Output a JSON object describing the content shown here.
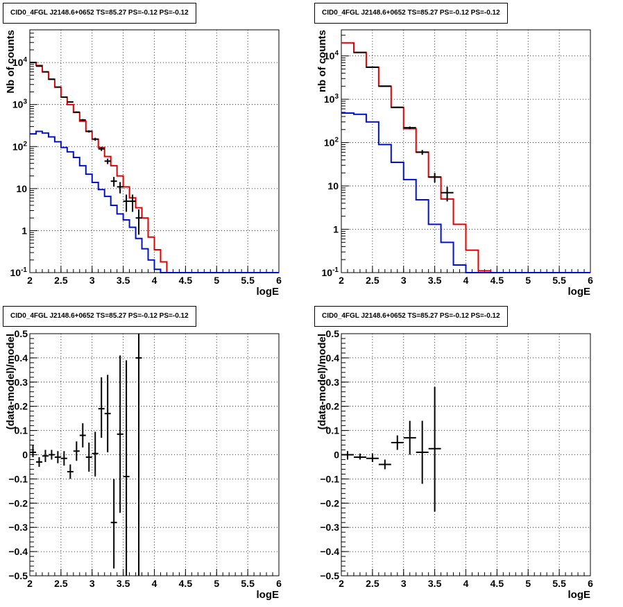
{
  "colors": {
    "data": "#000000",
    "total_model": "#e00000",
    "background_model": "#0010cc"
  },
  "chart_data": [
    {
      "type": "line",
      "title": "CID0_4FGL J2148.6+0652 TS=85.27 PS=-0.12 PS=-0.12",
      "xlabel": "logE",
      "ylabel": "Nb of counts",
      "xlim": [
        2,
        6
      ],
      "ylim": [
        0.1,
        60000
      ],
      "yscale": "log",
      "grid": true,
      "x_ticks": [
        "2",
        "2.5",
        "3",
        "3.5",
        "4",
        "4.5",
        "5",
        "5.5",
        "6"
      ],
      "y_ticks": [
        "10^{-1}",
        "1",
        "10",
        "10^{2}",
        "10^{3}",
        "10^{4}"
      ],
      "bin_edges": [
        2.0,
        2.1,
        2.2,
        2.3,
        2.4,
        2.5,
        2.6,
        2.7,
        2.8,
        2.9,
        3.0,
        3.1,
        3.2,
        3.3,
        3.4,
        3.5,
        3.6,
        3.7,
        3.8,
        3.9,
        4.0,
        4.1,
        4.2,
        4.3,
        4.4,
        4.5,
        4.6,
        4.7,
        4.8,
        4.9,
        5.0,
        5.1,
        5.2,
        5.3,
        5.4,
        5.5,
        5.6,
        5.7,
        5.8,
        5.9,
        6.0
      ],
      "series": [
        {
          "role": "total_model",
          "values": [
            10000,
            8500,
            6000,
            4000,
            2600,
            1500,
            1000,
            650,
            400,
            230,
            150,
            95,
            58,
            35,
            20,
            11,
            6,
            3.5,
            2,
            0.7,
            0.35,
            0.18,
            0.1,
            0.1,
            0.1,
            0.1,
            0.1,
            0.1,
            0.1,
            0.1,
            0.1,
            0.1,
            0.1,
            0.1,
            0.1,
            0.1,
            0.1,
            0.1,
            0.1,
            0.1
          ]
        },
        {
          "role": "background_model",
          "values": [
            200,
            230,
            210,
            170,
            130,
            95,
            75,
            55,
            35,
            22,
            14,
            9.5,
            6.5,
            4,
            2.5,
            1.8,
            1.2,
            0.65,
            0.37,
            0.2,
            0.12,
            0.1,
            0.1,
            0.1,
            0.1,
            0.1,
            0.1,
            0.1,
            0.1,
            0.1,
            0.1,
            0.1,
            0.1,
            0.1,
            0.1,
            0.1,
            0.1,
            0.1,
            0.1,
            0.1
          ]
        },
        {
          "role": "data",
          "points": [
            {
              "x": 2.05,
              "y": 10000,
              "err": 100
            },
            {
              "x": 2.15,
              "y": 8200,
              "err": 90
            },
            {
              "x": 2.25,
              "y": 6000,
              "err": 77
            },
            {
              "x": 2.35,
              "y": 4000,
              "err": 63
            },
            {
              "x": 2.45,
              "y": 2600,
              "err": 51
            },
            {
              "x": 2.55,
              "y": 1500,
              "err": 39
            },
            {
              "x": 2.65,
              "y": 1150,
              "err": 34
            },
            {
              "x": 2.75,
              "y": 660,
              "err": 26
            },
            {
              "x": 2.85,
              "y": 430,
              "err": 21
            },
            {
              "x": 2.95,
              "y": 230,
              "err": 15
            },
            {
              "x": 3.05,
              "y": 150,
              "err": 12
            },
            {
              "x": 3.15,
              "y": 88,
              "err": 9.4
            },
            {
              "x": 3.25,
              "y": 45,
              "err": 6.7
            },
            {
              "x": 3.35,
              "y": 15,
              "err": 3.9
            },
            {
              "x": 3.45,
              "y": 11,
              "err": 3.3
            },
            {
              "x": 3.55,
              "y": 5,
              "err": 2.2
            },
            {
              "x": 3.65,
              "y": 5,
              "err": 2.2
            },
            {
              "x": 3.75,
              "y": 2,
              "err": 1.2
            }
          ]
        }
      ]
    },
    {
      "type": "line",
      "title": "CID0_4FGL J2148.6+0652 TS=85.27 PS=-0.12 PS=-0.12",
      "xlabel": "logE",
      "ylabel": "nb of counts",
      "xlim": [
        2,
        6
      ],
      "ylim": [
        0.1,
        40000
      ],
      "yscale": "log",
      "grid": true,
      "x_ticks": [
        "2",
        "2.5",
        "3",
        "3.5",
        "4",
        "4.5",
        "5",
        "5.5",
        "6"
      ],
      "y_ticks": [
        "10^{-1}",
        "1",
        "10",
        "10^{2}",
        "10^{3}",
        "10^{4}"
      ],
      "bin_edges": [
        2.0,
        2.2,
        2.4,
        2.6,
        2.8,
        3.0,
        3.2,
        3.4,
        3.6,
        3.8,
        4.0,
        4.2,
        4.4,
        4.6,
        4.8,
        5.0,
        5.2,
        5.4,
        5.6,
        5.8,
        6.0
      ],
      "series": [
        {
          "role": "total_model",
          "values": [
            20000,
            12000,
            5500,
            2000,
            650,
            210,
            60,
            16,
            5,
            1.3,
            0.33,
            0.11,
            0.1,
            0.1,
            0.1,
            0.1,
            0.1,
            0.1,
            0.1,
            0.1
          ]
        },
        {
          "role": "background_model",
          "values": [
            480,
            450,
            300,
            90,
            35,
            14,
            4.8,
            1.3,
            0.5,
            0.15,
            0.1,
            0.1,
            0.1,
            0.1,
            0.1,
            0.1,
            0.1,
            0.1,
            0.1,
            0.1
          ]
        },
        {
          "role": "data",
          "points": [
            {
              "x": 2.3,
              "y": 12000,
              "err": 110
            },
            {
              "x": 2.5,
              "y": 5500,
              "err": 74
            },
            {
              "x": 2.7,
              "y": 2000,
              "err": 45
            },
            {
              "x": 2.9,
              "y": 650,
              "err": 25
            },
            {
              "x": 3.1,
              "y": 220,
              "err": 15
            },
            {
              "x": 3.3,
              "y": 60,
              "err": 7.7
            },
            {
              "x": 3.5,
              "y": 16,
              "err": 4
            },
            {
              "x": 3.7,
              "y": 7,
              "err": 2.6
            }
          ]
        }
      ]
    },
    {
      "type": "scatter",
      "title": "CID0_4FGL J2148.6+0652 TS=85.27 PS=-0.12 PS=-0.12",
      "xlabel": "logE",
      "ylabel": "(data-model)/model",
      "xlim": [
        2,
        6
      ],
      "ylim": [
        -0.5,
        0.5
      ],
      "grid": true,
      "x_ticks": [
        "2",
        "2.5",
        "3",
        "3.5",
        "4",
        "4.5",
        "5",
        "5.5",
        "6"
      ],
      "y_ticks": [
        "−0.5",
        "−0.4",
        "−0.3",
        "−0.2",
        "−0.1",
        "0",
        "0.1",
        "0.2",
        "0.3",
        "0.4",
        "0.5"
      ],
      "xerr": 0.05,
      "points": [
        {
          "x": 2.05,
          "y": 0.01,
          "ylo": -0.01,
          "yhi": 0.04
        },
        {
          "x": 2.15,
          "y": -0.03,
          "ylo": -0.05,
          "yhi": -0.01
        },
        {
          "x": 2.25,
          "y": -0.005,
          "ylo": -0.03,
          "yhi": 0.02
        },
        {
          "x": 2.35,
          "y": 0.0,
          "ylo": -0.02,
          "yhi": 0.02
        },
        {
          "x": 2.45,
          "y": -0.01,
          "ylo": -0.035,
          "yhi": 0.015
        },
        {
          "x": 2.55,
          "y": -0.015,
          "ylo": -0.045,
          "yhi": 0.015
        },
        {
          "x": 2.65,
          "y": -0.07,
          "ylo": -0.1,
          "yhi": -0.04
        },
        {
          "x": 2.75,
          "y": 0.015,
          "ylo": -0.025,
          "yhi": 0.055
        },
        {
          "x": 2.85,
          "y": 0.08,
          "ylo": 0.03,
          "yhi": 0.13
        },
        {
          "x": 2.95,
          "y": -0.01,
          "ylo": -0.07,
          "yhi": 0.05
        },
        {
          "x": 3.05,
          "y": 0.005,
          "ylo": -0.09,
          "yhi": 0.095
        },
        {
          "x": 3.15,
          "y": 0.19,
          "ylo": 0.07,
          "yhi": 0.32
        },
        {
          "x": 3.25,
          "y": 0.17,
          "ylo": 0.01,
          "yhi": 0.33
        },
        {
          "x": 3.35,
          "y": -0.28,
          "ylo": -0.47,
          "yhi": -0.1
        },
        {
          "x": 3.45,
          "y": 0.085,
          "ylo": -0.24,
          "yhi": 0.41
        },
        {
          "x": 3.55,
          "y": -0.09,
          "ylo": -0.5,
          "yhi": 0.39
        },
        {
          "x": 3.75,
          "y": 0.4,
          "ylo": -0.5,
          "yhi": 0.5
        }
      ]
    },
    {
      "type": "scatter",
      "title": "CID0_4FGL J2148.6+0652 TS=85.27 PS=-0.12 PS=-0.12",
      "xlabel": "logE",
      "ylabel": "(data-model)/model",
      "xlim": [
        2,
        6
      ],
      "ylim": [
        -0.5,
        0.5
      ],
      "grid": true,
      "x_ticks": [
        "2",
        "2.5",
        "3",
        "3.5",
        "4",
        "4.5",
        "5",
        "5.5",
        "6"
      ],
      "y_ticks": [
        "−0.5",
        "−0.4",
        "−0.3",
        "−0.2",
        "−0.1",
        "0",
        "0.1",
        "0.2",
        "0.3",
        "0.4",
        "0.5"
      ],
      "xerr": 0.1,
      "points": [
        {
          "x": 2.1,
          "y": 0.0,
          "ylo": -0.02,
          "yhi": 0.015
        },
        {
          "x": 2.3,
          "y": -0.01,
          "ylo": -0.02,
          "yhi": 0.005
        },
        {
          "x": 2.5,
          "y": -0.015,
          "ylo": -0.03,
          "yhi": 0.005
        },
        {
          "x": 2.7,
          "y": -0.04,
          "ylo": -0.06,
          "yhi": -0.02
        },
        {
          "x": 2.9,
          "y": 0.05,
          "ylo": 0.02,
          "yhi": 0.08
        },
        {
          "x": 3.1,
          "y": 0.07,
          "ylo": 0.0,
          "yhi": 0.14
        },
        {
          "x": 3.3,
          "y": 0.01,
          "ylo": -0.12,
          "yhi": 0.14
        },
        {
          "x": 3.5,
          "y": 0.025,
          "ylo": -0.235,
          "yhi": 0.28
        }
      ]
    }
  ]
}
